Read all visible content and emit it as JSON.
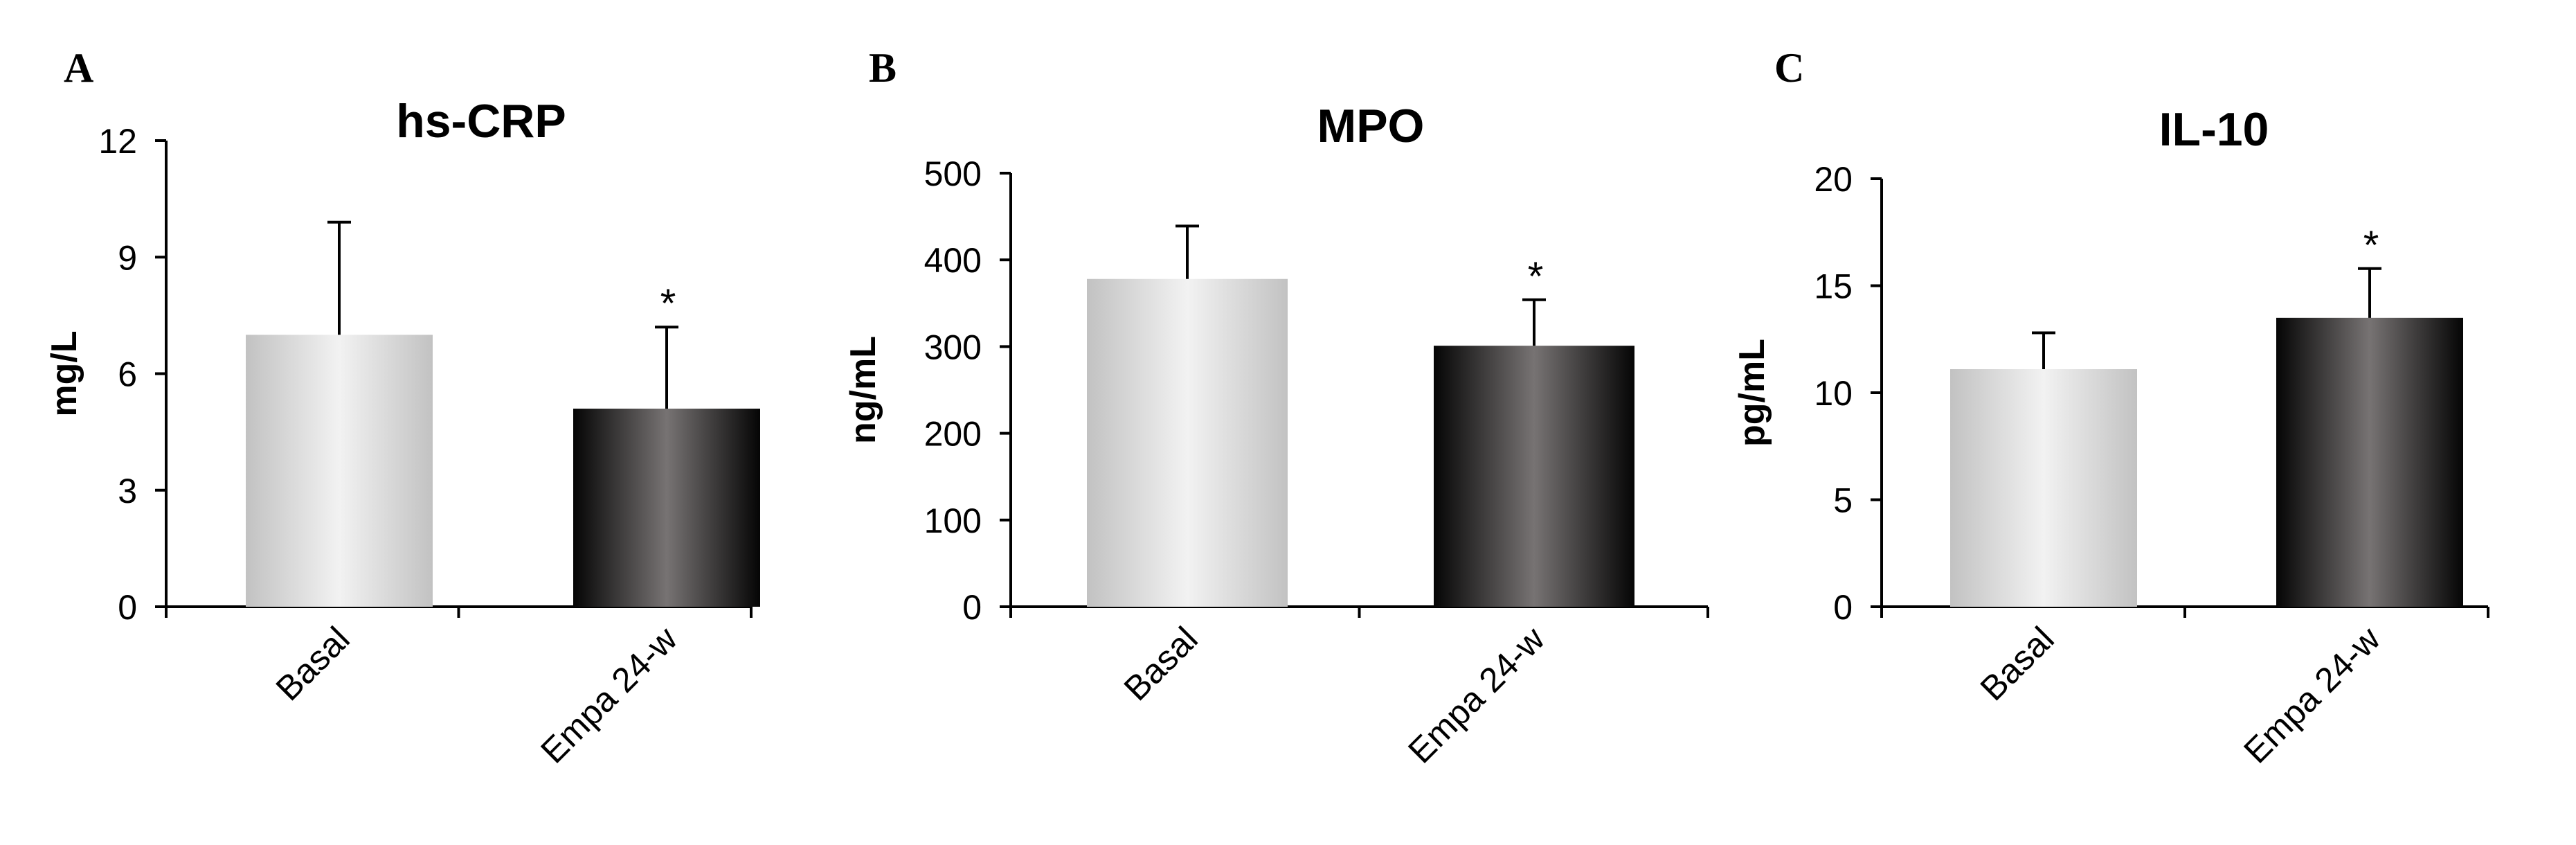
{
  "chart_data": [
    {
      "type": "bar",
      "panel": "A",
      "title": "hs-CRP",
      "ylabel": "mg/L",
      "xlabel": "",
      "ylim": [
        0,
        12
      ],
      "yticks": [
        0,
        3,
        6,
        9,
        12
      ],
      "categories": [
        "Basal",
        "Empa 24-w"
      ],
      "values": [
        7.0,
        5.1
      ],
      "errors": [
        2.9,
        2.1
      ],
      "significance": [
        "",
        "*"
      ],
      "bar_styles": [
        "light-gray-gradient",
        "dark-gray-gradient"
      ]
    },
    {
      "type": "bar",
      "panel": "B",
      "title": "MPO",
      "ylabel": "ng/mL",
      "xlabel": "",
      "ylim": [
        0,
        500
      ],
      "yticks": [
        0,
        100,
        200,
        300,
        400,
        500
      ],
      "categories": [
        "Basal",
        "Empa 24-w"
      ],
      "values": [
        378,
        301
      ],
      "errors": [
        61,
        53
      ],
      "significance": [
        "",
        "*"
      ],
      "bar_styles": [
        "light-gray-gradient",
        "dark-gray-gradient"
      ]
    },
    {
      "type": "bar",
      "panel": "C",
      "title": "IL-10",
      "ylabel": "pg/mL",
      "xlabel": "",
      "ylim": [
        0,
        20
      ],
      "yticks": [
        0,
        5,
        10,
        15,
        20
      ],
      "categories": [
        "Basal",
        "Empa 24-w"
      ],
      "values": [
        11.1,
        13.5
      ],
      "errors": [
        1.7,
        2.3
      ],
      "significance": [
        "",
        "*"
      ],
      "bar_styles": [
        "light-gray-gradient",
        "dark-gray-gradient"
      ]
    }
  ],
  "colors": {
    "light_bar_edge": "#c2c2c2",
    "light_bar_center": "#f2f2f2",
    "dark_bar_edge": "#050505",
    "dark_bar_center": "#777373",
    "axis": "#000000"
  }
}
